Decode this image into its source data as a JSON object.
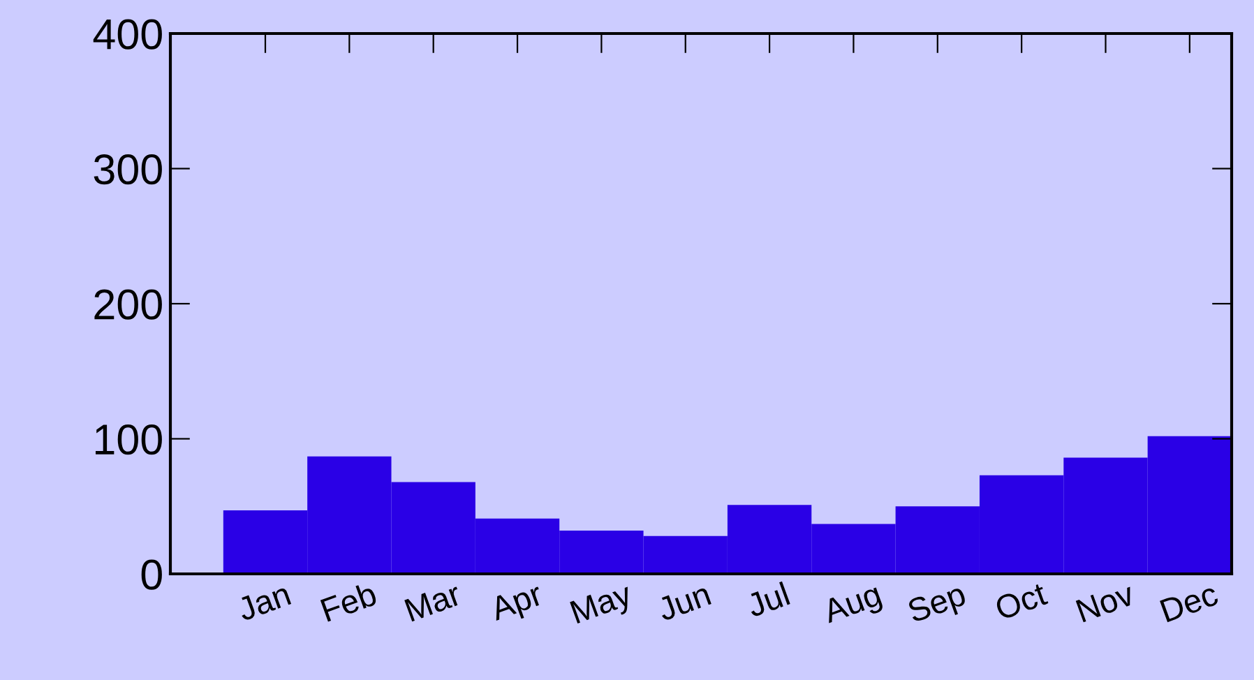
{
  "chart_data": {
    "type": "bar",
    "categories": [
      "Jan",
      "Feb",
      "Mar",
      "Apr",
      "May",
      "Jun",
      "Jul",
      "Aug",
      "Sep",
      "Oct",
      "Nov",
      "Dec"
    ],
    "values": [
      47,
      87,
      68,
      41,
      32,
      28,
      51,
      37,
      50,
      73,
      86,
      102
    ],
    "color": "#2a00e6",
    "ylim": [
      0,
      400
    ],
    "yticks": [
      0,
      100,
      200,
      300,
      400
    ],
    "grid": false
  }
}
